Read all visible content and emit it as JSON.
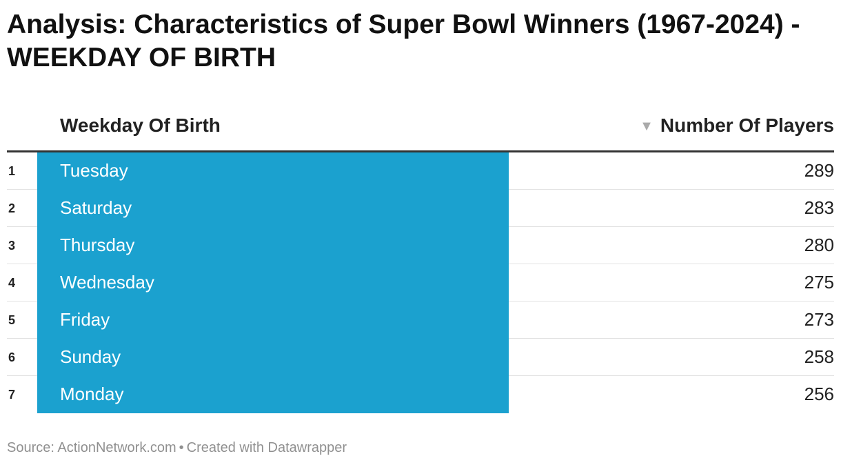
{
  "title": "Analysis: Characteristics of Super Bowl Winners (1967-2024) - WEEKDAY OF BIRTH",
  "chart_data": {
    "type": "table",
    "columns": [
      "Weekday Of Birth",
      "Number Of Players"
    ],
    "sort_icon": "sort-descending-icon",
    "sort_glyph": "▼",
    "rows": [
      {
        "rank": "1",
        "weekday": "Tuesday",
        "players": "289"
      },
      {
        "rank": "2",
        "weekday": "Saturday",
        "players": "283"
      },
      {
        "rank": "3",
        "weekday": "Thursday",
        "players": "280"
      },
      {
        "rank": "4",
        "weekday": "Wednesday",
        "players": "275"
      },
      {
        "rank": "5",
        "weekday": "Friday",
        "players": "273"
      },
      {
        "rank": "6",
        "weekday": "Sunday",
        "players": "258"
      },
      {
        "rank": "7",
        "weekday": "Monday",
        "players": "256"
      }
    ],
    "highlight_color": "#1ba1cf"
  },
  "footer": {
    "source": "Source: ActionNetwork.com",
    "separator": "•",
    "credit": "Created with Datawrapper"
  }
}
